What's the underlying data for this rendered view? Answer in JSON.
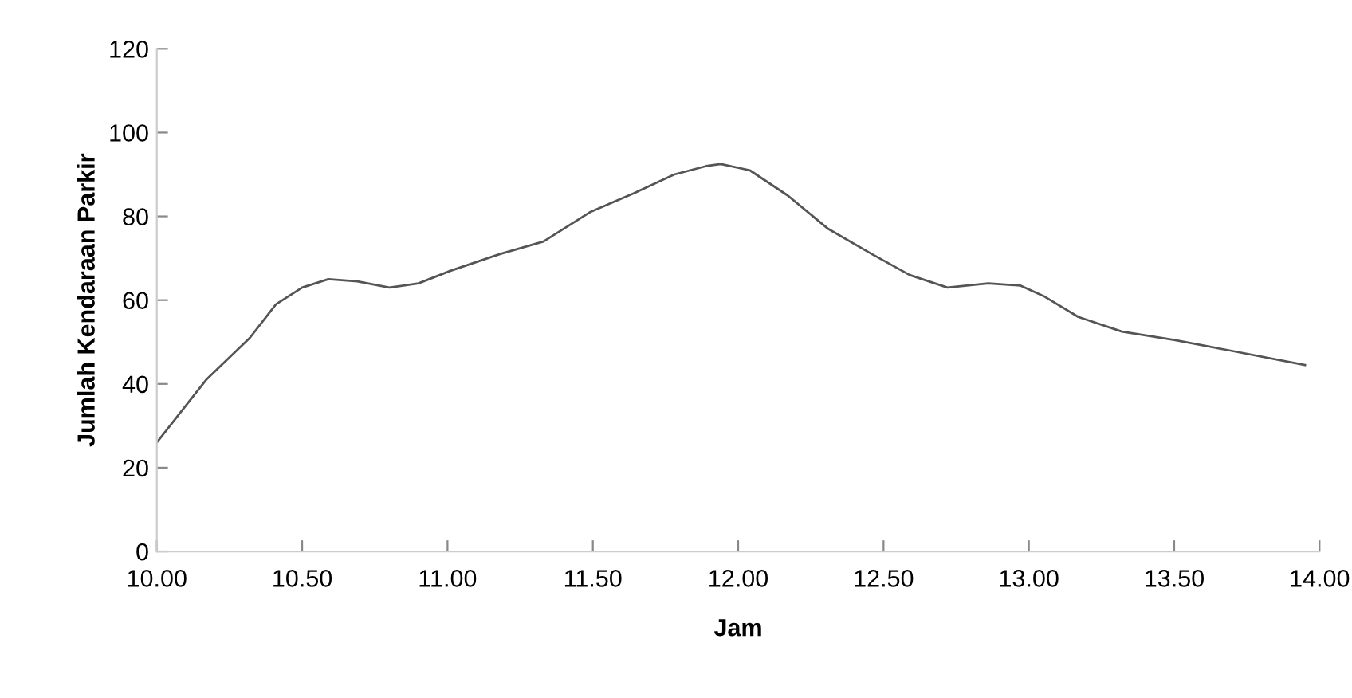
{
  "chart_data": {
    "type": "line",
    "xlabel": "Jam",
    "ylabel": "Jumlah Kendaraan Parkir",
    "series": [
      {
        "color": "#555555",
        "x": [
          10.0,
          10.17,
          10.32,
          10.41,
          10.5,
          10.59,
          10.69,
          10.8,
          10.9,
          11.01,
          11.18,
          11.33,
          11.49,
          11.64,
          11.78,
          11.89,
          11.94,
          12.04,
          12.17,
          12.31,
          12.46,
          12.59,
          12.72,
          12.86,
          12.97,
          13.05,
          13.17,
          13.32,
          13.5,
          13.69,
          13.95
        ],
        "values": [
          26,
          41,
          51,
          59,
          63,
          65,
          64.5,
          63,
          64,
          67,
          71,
          74,
          81,
          85.5,
          90,
          92,
          92.5,
          91,
          85,
          77,
          71,
          66,
          63,
          64,
          63.5,
          61,
          56,
          52.5,
          50.5,
          48,
          44.5
        ]
      }
    ],
    "xlim": [
      10,
      14
    ],
    "ylim": [
      0,
      120
    ],
    "xticks": [
      {
        "value": 10,
        "label": "10.00"
      },
      {
        "value": 10.5,
        "label": "10.50"
      },
      {
        "value": 11,
        "label": "11.00"
      },
      {
        "value": 11.5,
        "label": "11.50"
      },
      {
        "value": 12,
        "label": "12.00"
      },
      {
        "value": 12.5,
        "label": "12.50"
      },
      {
        "value": 13,
        "label": "13.00"
      },
      {
        "value": 13.5,
        "label": "13.50"
      },
      {
        "value": 14,
        "label": "14.00"
      }
    ],
    "yticks": [
      0,
      20,
      40,
      60,
      80,
      100,
      120
    ],
    "grid": false,
    "legend": false,
    "marker": "none",
    "line_style": "solid"
  }
}
